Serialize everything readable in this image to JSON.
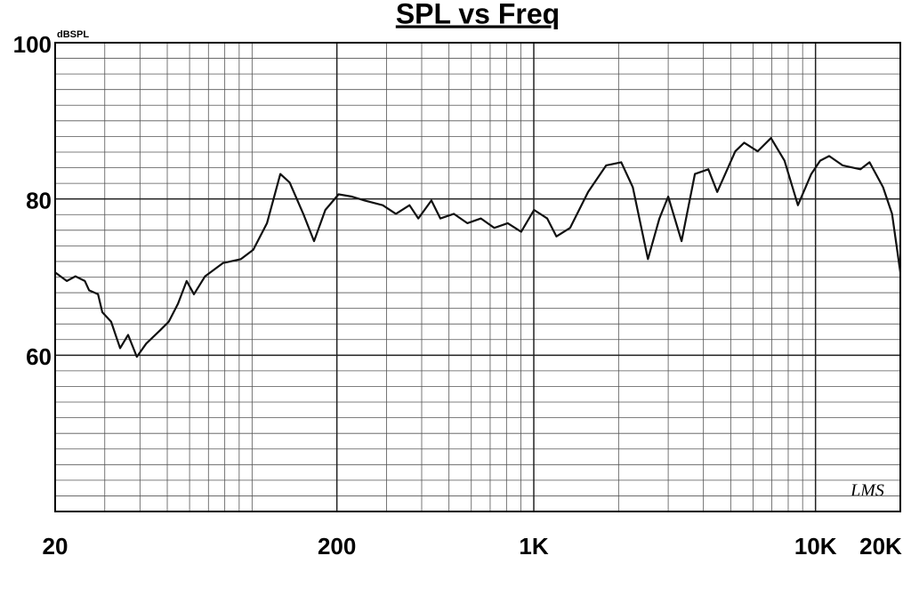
{
  "chart_data": {
    "type": "line",
    "title": "SPL vs Freq",
    "y_unit": "dBSPL",
    "annotation": "LMS",
    "log_x": true,
    "grid": true,
    "xlim": [
      20,
      20000
    ],
    "ylim": [
      40,
      100
    ],
    "xticks": [
      20,
      200,
      {
        "value": 1000,
        "label": "1K"
      },
      {
        "value": 10000,
        "label": "10K"
      },
      {
        "value": 20000,
        "label": "20K"
      }
    ],
    "yticks": [
      60,
      80,
      100
    ],
    "minor_xticks": [
      20,
      30,
      40,
      50,
      60,
      70,
      80,
      90,
      100,
      200,
      300,
      400,
      500,
      600,
      700,
      800,
      900,
      1000,
      2000,
      3000,
      4000,
      5000,
      6000,
      7000,
      8000,
      9000,
      10000,
      20000
    ],
    "minor_yticks": [
      40,
      42,
      44,
      46,
      48,
      50,
      52,
      54,
      56,
      58,
      60,
      62,
      64,
      66,
      68,
      70,
      72,
      74,
      76,
      78,
      80,
      82,
      84,
      86,
      88,
      90,
      92,
      94,
      96,
      98,
      100
    ],
    "x": [
      20,
      22,
      23.6,
      25.5,
      26.4,
      28.4,
      29.4,
      31.6,
      34,
      36.3,
      39,
      42.1,
      47.2,
      50.6,
      54.6,
      58.6,
      62.2,
      68.1,
      78.8,
      91.3,
      101,
      113,
      126,
      136,
      152,
      166,
      182,
      203,
      226,
      251,
      291,
      324,
      362,
      389,
      433,
      466,
      520,
      581,
      649,
      724,
      808,
      902,
      1002,
      1116,
      1203,
      1345,
      1559,
      1807,
      2043,
      2246,
      2541,
      2791,
      3000,
      3345,
      3732,
      4165,
      4478,
      5190,
      5583,
      6228,
      6949,
      7760,
      8660,
      9660,
      10390,
      11180,
      12480,
      14440,
      15550,
      17370,
      18690,
      20000
    ],
    "series": [
      {
        "name": "SPL",
        "color": "#111111",
        "values": [
          70.6,
          69.5,
          70.1,
          69.5,
          68.3,
          67.8,
          65.5,
          64.3,
          60.9,
          62.6,
          59.8,
          61.5,
          63.2,
          64.3,
          66.6,
          69.5,
          67.8,
          70.1,
          71.8,
          72.3,
          73.5,
          76.9,
          83.2,
          82.1,
          78.1,
          74.6,
          78.6,
          80.6,
          80.3,
          79.8,
          79.2,
          78.1,
          79.2,
          77.5,
          79.8,
          77.5,
          78.1,
          76.9,
          77.5,
          76.3,
          76.9,
          75.8,
          78.6,
          77.5,
          75.2,
          76.3,
          80.9,
          84.3,
          84.7,
          81.5,
          72.3,
          77.5,
          80.3,
          74.6,
          83.2,
          83.8,
          80.9,
          86.1,
          87.2,
          86.1,
          87.8,
          84.9,
          79.2,
          83.2,
          84.9,
          85.5,
          84.3,
          83.8,
          84.7,
          81.5,
          78.1,
          70.6
        ]
      }
    ]
  }
}
